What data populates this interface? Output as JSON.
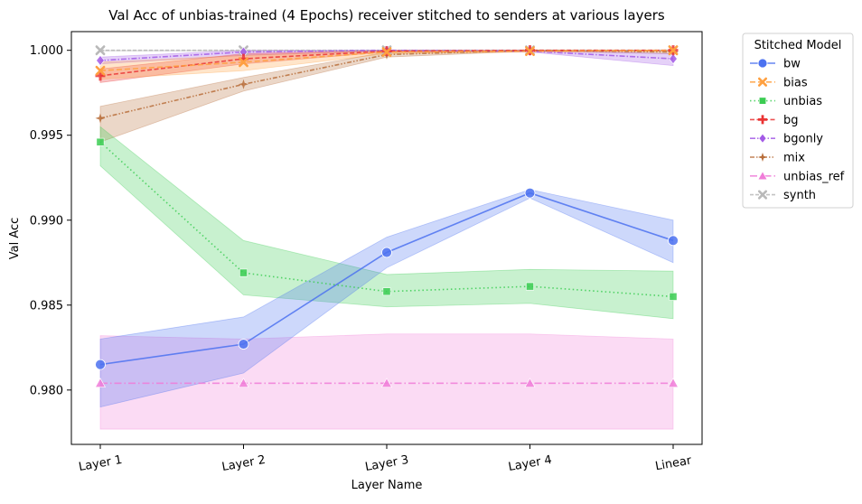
{
  "chart_data": {
    "type": "line",
    "title": "Val Acc of unbias-trained (4 Epochs) receiver stitched to senders at various layers",
    "xlabel": "Layer Name",
    "ylabel": "Val Acc",
    "categories": [
      "Layer 1",
      "Layer 2",
      "Layer 3",
      "Layer 4",
      "Linear"
    ],
    "ylim": [
      0.9768,
      1.0011
    ],
    "yticks": [
      0.98,
      0.985,
      0.99,
      0.995,
      1.0
    ],
    "ytick_labels": [
      "0.980",
      "0.985",
      "0.990",
      "0.995",
      "1.000"
    ],
    "grid": false,
    "legend": {
      "title": "Stitched Model",
      "placement": "outside-top-right"
    },
    "series": [
      {
        "name": "bw",
        "color": "#4c72f0",
        "dash": "",
        "marker": "circle",
        "values": [
          0.9815,
          0.9827,
          0.9881,
          0.9916,
          0.9888
        ],
        "lower": [
          0.979,
          0.981,
          0.9872,
          0.9913,
          0.9875
        ],
        "upper": [
          0.983,
          0.9843,
          0.989,
          0.9918,
          0.99
        ]
      },
      {
        "name": "bias",
        "color": "#ffa040",
        "dash": "6,3",
        "marker": "x",
        "values": [
          0.9988,
          0.9993,
          0.9999,
          0.99995,
          1.0
        ],
        "lower": [
          0.9983,
          0.9988,
          0.9998,
          0.9999,
          0.99995
        ],
        "upper": [
          0.9993,
          0.9997,
          1.0,
          1.0,
          1.0
        ]
      },
      {
        "name": "unbias",
        "color": "#3bcc52",
        "dash": "1.5,3",
        "marker": "square",
        "values": [
          0.9946,
          0.9869,
          0.9858,
          0.9861,
          0.9855
        ],
        "lower": [
          0.9932,
          0.9856,
          0.9849,
          0.9851,
          0.9842
        ],
        "upper": [
          0.9955,
          0.9888,
          0.9868,
          0.9871,
          0.987
        ]
      },
      {
        "name": "bg",
        "color": "#ea3434",
        "dash": "5,2.5",
        "marker": "plus",
        "values": [
          0.9985,
          0.9995,
          0.99995,
          1.0,
          1.0
        ],
        "lower": [
          0.9981,
          0.9992,
          0.9999,
          0.99995,
          0.99995
        ],
        "upper": [
          0.9989,
          0.9998,
          1.0,
          1.0,
          1.0
        ]
      },
      {
        "name": "bgonly",
        "color": "#a35ae6",
        "dash": "6,2,1.5,2",
        "marker": "diamond",
        "values": [
          0.9994,
          0.9999,
          1.0,
          0.99995,
          0.9995
        ],
        "lower": [
          0.9992,
          0.9997,
          0.99995,
          0.9999,
          0.9991
        ],
        "upper": [
          0.9996,
          1.0,
          1.0,
          1.0,
          0.9998
        ]
      },
      {
        "name": "mix",
        "color": "#b86e3b",
        "dash": "5,2,1.5,2,1.5,2",
        "marker": "star",
        "values": [
          0.996,
          0.998,
          0.99975,
          1.0,
          0.9999
        ],
        "lower": [
          0.9946,
          0.9976,
          0.9996,
          0.99995,
          0.9998
        ],
        "upper": [
          0.9967,
          0.9984,
          0.9999,
          1.0,
          1.0
        ]
      },
      {
        "name": "unbias_ref",
        "color": "#f07cd8",
        "dash": "8,3,1.5,3",
        "marker": "triangle",
        "values": [
          0.9804,
          0.9804,
          0.9804,
          0.9804,
          0.9804
        ],
        "lower": [
          0.9777,
          0.9777,
          0.9777,
          0.9777,
          0.9777
        ],
        "upper": [
          0.9832,
          0.983,
          0.9833,
          0.9833,
          0.983
        ]
      },
      {
        "name": "synth",
        "color": "#b9b9b9",
        "dash": "4,2",
        "marker": "x",
        "values": [
          1.0,
          1.0,
          1.0,
          1.0,
          1.0
        ],
        "lower": [
          0.99995,
          0.99995,
          0.99995,
          0.99995,
          0.99995
        ],
        "upper": [
          1.0,
          1.0,
          1.0,
          1.0,
          1.0
        ]
      }
    ]
  }
}
